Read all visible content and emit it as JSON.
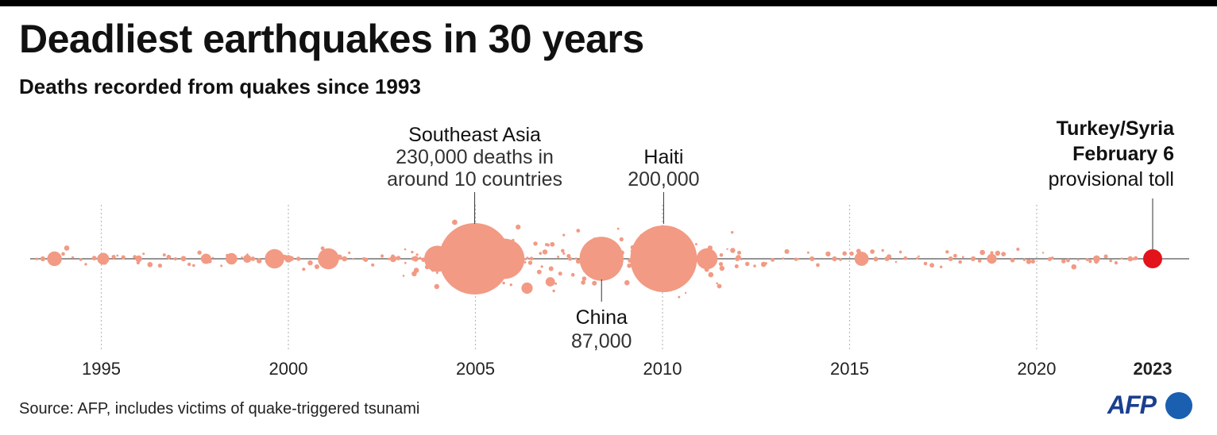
{
  "title": "Deadliest earthquakes in 30 years",
  "subtitle": "Deaths recorded from quakes since 1993",
  "source": "Source: AFP, includes victims of quake-triggered tsunami",
  "logo_text": "AFP",
  "colors": {
    "bubble": "#f29a84",
    "highlight": "#e3131b",
    "axis": "#555555",
    "grid": "#bbbbbb",
    "logo": "#1b5fb0"
  },
  "chart_data": {
    "type": "scatter",
    "xlabel": "",
    "ylabel": "",
    "xlim": [
      1993,
      2024
    ],
    "x_ticks": [
      {
        "value": 1995,
        "label": "1995"
      },
      {
        "value": 2000,
        "label": "2000"
      },
      {
        "value": 2005,
        "label": "2005"
      },
      {
        "value": 2010,
        "label": "2010"
      },
      {
        "value": 2015,
        "label": "2015"
      },
      {
        "value": 2020,
        "label": "2020"
      },
      {
        "value": 2023.1,
        "label": "2023",
        "bold": true
      }
    ],
    "grid": true,
    "annotations": [
      {
        "name": "southeast-asia",
        "x": 2004.98,
        "lines": [
          "Southeast Asia",
          "230,000 deaths in",
          "around 10 countries"
        ],
        "side": "above"
      },
      {
        "name": "haiti",
        "x": 2010.03,
        "lines": [
          "Haiti",
          "200,000"
        ],
        "side": "above"
      },
      {
        "name": "china",
        "x": 2008.37,
        "lines": [
          "China",
          "87,000"
        ],
        "side": "below"
      },
      {
        "name": "turkey-syria",
        "x": 2023.1,
        "lines": [
          "Turkey/Syria",
          "February 6",
          "provisional toll"
        ],
        "bold_lines": 2,
        "side": "above-right"
      }
    ],
    "quakes": [
      {
        "date": 2004.98,
        "deaths": 230000,
        "label": "Southeast Asia"
      },
      {
        "date": 2010.03,
        "deaths": 200000,
        "label": "Haiti"
      },
      {
        "date": 2008.37,
        "deaths": 87000,
        "label": "China"
      },
      {
        "date": 2005.77,
        "deaths": 73000
      },
      {
        "date": 2003.98,
        "deaths": 31000
      },
      {
        "date": 2001.07,
        "deaths": 20000
      },
      {
        "date": 1999.63,
        "deaths": 17000
      },
      {
        "date": 1993.75,
        "deaths": 9700
      },
      {
        "date": 2015.32,
        "deaths": 8900
      },
      {
        "date": 2011.19,
        "deaths": 20000
      },
      {
        "date": 1998.48,
        "deaths": 6000
      },
      {
        "date": 2006.38,
        "deaths": 5800
      },
      {
        "date": 2007.0,
        "deaths": 4000
      },
      {
        "date": 1995.05,
        "deaths": 6400
      },
      {
        "date": 1997.8,
        "deaths": 4800
      },
      {
        "date": 2018.8,
        "deaths": 4300
      },
      {
        "date": 2023.1,
        "deaths": 45000,
        "highlight": true
      },
      {
        "date": 2021.6,
        "deaths": 2200
      },
      {
        "date": 2022.5,
        "deaths": 1200
      },
      {
        "date": 1996.0,
        "deaths": 2000
      },
      {
        "date": 1998.9,
        "deaths": 3000
      },
      {
        "date": 2000.0,
        "deaths": 2500
      },
      {
        "date": 2002.8,
        "deaths": 2000
      },
      {
        "date": 2003.4,
        "deaths": 1500
      },
      {
        "date": 2001.5,
        "deaths": 1200
      },
      {
        "date": 2016.0,
        "deaths": 700
      },
      {
        "date": 2017.7,
        "deaths": 700
      },
      {
        "date": 2018.3,
        "deaths": 600
      },
      {
        "date": 2012.0,
        "deaths": 900
      },
      {
        "date": 2014.0,
        "deaths": 700
      }
    ]
  }
}
